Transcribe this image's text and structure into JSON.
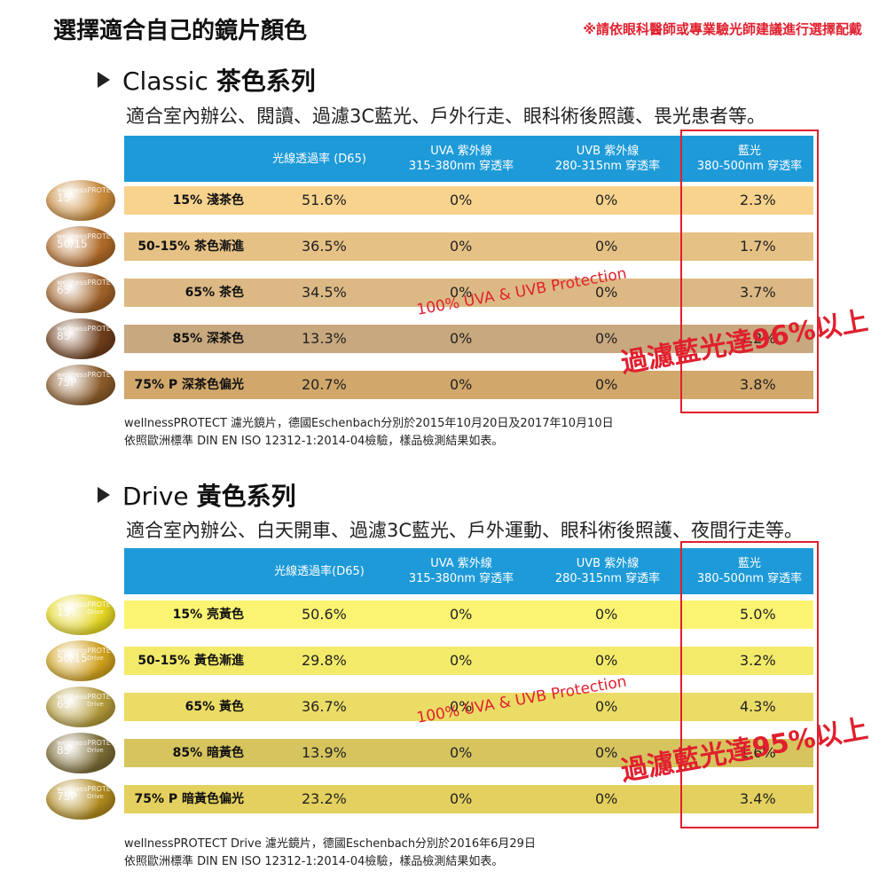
{
  "header": {
    "title": "選擇適合自己的鏡片顏色",
    "note": "※請依眼科醫師或專業驗光師建議進行選擇配戴"
  },
  "columns": {
    "transmittance": "光線透過率 (D65)",
    "transmittance_drive": "光線透過率(D65)",
    "uva_title": "UVA 紫外線",
    "uva_sub": "315-380nm 穿透率",
    "uvb_title": "UVB 紫外線",
    "uvb_sub": "280-315nm 穿透率",
    "blue_title": "藍光",
    "blue_sub": "380-500nm 穿透率"
  },
  "lens_brand": "wellnessPROTECT",
  "classic": {
    "series": "Classic",
    "series_cn": "茶色系列",
    "description": "適合室內辦公、閱讀、過濾3C藍光、戶外行走、眼科術後照護、畏光患者等。",
    "protection_note": "100% UVA & UVB Protection",
    "filter_note": "過濾藍光達96%以上",
    "footnote_1": "wellnessPROTECT 濾光鏡片，德國Eschenbach分別於2015年10月20日及2017年10月10日",
    "footnote_2": "依照歐洲標準 DIN EN ISO 12312-1:2014-04檢驗，樣品檢測結果如表。",
    "rows": [
      {
        "lens_code": "15",
        "label": "15% 淺茶色",
        "transmittance": "51.6%",
        "uva": "0%",
        "uvb": "0%",
        "blue": "2.3%",
        "row_color": "#f8d38e",
        "lens_color": "#c98a3a"
      },
      {
        "lens_code": "50/15",
        "label": "50-15% 茶色漸進",
        "transmittance": "36.5%",
        "uva": "0%",
        "uvb": "0%",
        "blue": "1.7%",
        "row_color": "#e6c185",
        "lens_color": "#b06a28"
      },
      {
        "lens_code": "65",
        "label": "65% 茶色",
        "transmittance": "34.5%",
        "uva": "0%",
        "uvb": "0%",
        "blue": "3.7%",
        "row_color": "#dcb984",
        "lens_color": "#a06229"
      },
      {
        "lens_code": "85",
        "label": "85% 深茶色",
        "transmittance": "13.3%",
        "uva": "0%",
        "uvb": "0%",
        "blue": "1.2%",
        "row_color": "#c8a87e",
        "lens_color": "#6e3e1c"
      },
      {
        "lens_code": "75P",
        "label": "75% P 深茶色偏光",
        "transmittance": "20.7%",
        "uva": "0%",
        "uvb": "0%",
        "blue": "3.8%",
        "row_color": "#d1a76b",
        "lens_color": "#8a5a2a"
      }
    ]
  },
  "drive": {
    "series": "Drive",
    "series_cn": "黃色系列",
    "description": "適合室內辦公、白天開車、過濾3C藍光、戶外運動、眼科術後照護、夜間行走等。",
    "protection_note": "100% UVA & UVB Protection",
    "filter_note": "過濾藍光達95%以上",
    "footnote_1": "wellnessPROTECT Drive 濾光鏡片，德國Eschenbach分別於2016年6月29日",
    "footnote_2": "依照歐洲標準 DIN EN ISO 12312-1:2014-04檢驗，樣品檢測結果如表。",
    "lens_tag": "Drive",
    "rows": [
      {
        "lens_code": "15",
        "label": "15% 亮黃色",
        "transmittance": "50.6%",
        "uva": "0%",
        "uvb": "0%",
        "blue": "5.0%",
        "row_color": "#fbf473",
        "lens_color": "#e6d824"
      },
      {
        "lens_code": "50/15",
        "label": "50-15% 黃色漸進",
        "transmittance": "29.8%",
        "uva": "0%",
        "uvb": "0%",
        "blue": "3.2%",
        "row_color": "#f3ea6a",
        "lens_color": "#d1a21e"
      },
      {
        "lens_code": "65",
        "label": "65% 黃色",
        "transmittance": "36.7%",
        "uva": "0%",
        "uvb": "0%",
        "blue": "4.3%",
        "row_color": "#ebdc66",
        "lens_color": "#b39a3a"
      },
      {
        "lens_code": "85",
        "label": "85% 暗黃色",
        "transmittance": "13.9%",
        "uva": "0%",
        "uvb": "0%",
        "blue": "1.6%",
        "row_color": "#d6c45f",
        "lens_color": "#7a6a34"
      },
      {
        "lens_code": "75P",
        "label": "75% P 暗黃色偏光",
        "transmittance": "23.2%",
        "uva": "0%",
        "uvb": "0%",
        "blue": "3.4%",
        "row_color": "#e4d05e",
        "lens_color": "#b08a1e"
      }
    ]
  },
  "accent": {
    "header_blue": "#1e9ad8",
    "red": "#e0202e"
  }
}
